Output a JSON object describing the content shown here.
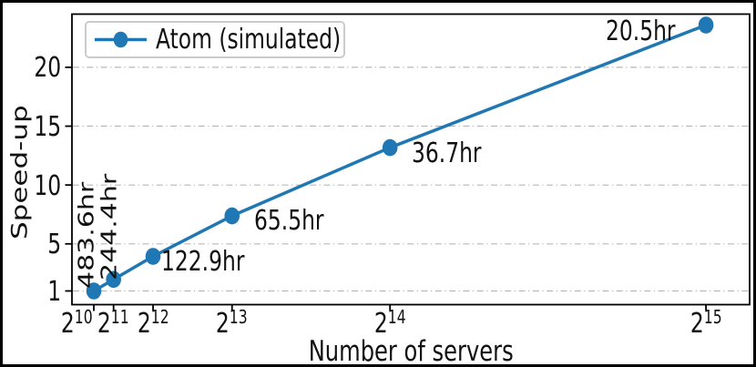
{
  "chart_data": {
    "type": "line",
    "title": "",
    "xlabel": "Number of servers",
    "ylabel": "Speed-up",
    "x_scale": "linear",
    "x_tick_base": "2",
    "x_tick_exponents": [
      10,
      11,
      12,
      13,
      14,
      15
    ],
    "x_tick_labels": [
      "2^10",
      "2^11",
      "2^12",
      "2^13",
      "2^14",
      "2^15"
    ],
    "y_ticks": [
      "1",
      "5",
      "10",
      "15",
      "20"
    ],
    "xlim": [
      0,
      35000
    ],
    "ylim": [
      -0.2,
      24.5
    ],
    "grid": {
      "axis": "y",
      "style": "dash-dot",
      "color": "#b8b8b8"
    },
    "legend": {
      "position": "upper-left",
      "label": "Atom (simulated)"
    },
    "series": [
      {
        "name": "Atom (simulated)",
        "color": "#1f77b4",
        "marker": "circle",
        "x_servers": [
          1024,
          2048,
          4096,
          8192,
          16384,
          32768
        ],
        "speedup": [
          1.0,
          1.98,
          3.94,
          7.38,
          13.18,
          23.59
        ],
        "point_labels": [
          "483.6hr",
          "244.4hr",
          "122.9hr",
          "65.5hr",
          "36.7hr",
          "20.5hr"
        ]
      }
    ]
  },
  "colors": {
    "accent": "#1f77b4",
    "spine": "#000000",
    "background": "#ffffff"
  }
}
